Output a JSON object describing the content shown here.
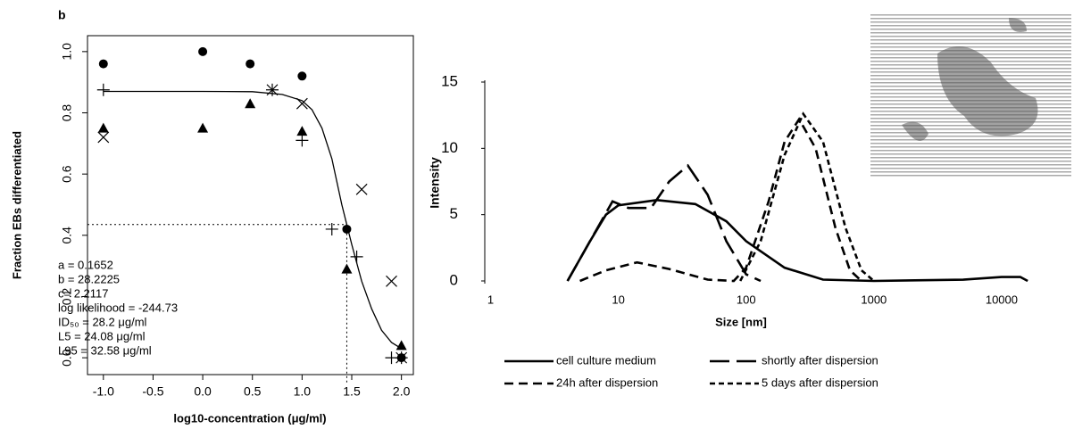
{
  "chart_data": [
    {
      "type": "scatter",
      "panel_label": "b",
      "xlabel": "log10-concentration (μg/ml)",
      "ylabel": "Fraction EBs differentiated",
      "xlim": [
        -1.16,
        2.12
      ],
      "ylim": [
        -0.055,
        1.052
      ],
      "xticks": [
        {
          "value": -1,
          "label": "-1.0"
        },
        {
          "value": -0.5,
          "label": "-0.5"
        },
        {
          "value": 0,
          "label": "0.0"
        },
        {
          "value": 0.5,
          "label": "0.5"
        },
        {
          "value": 1,
          "label": "1.0"
        },
        {
          "value": 1.5,
          "label": "1.5"
        },
        {
          "value": 2,
          "label": "2.0"
        }
      ],
      "yticks": [
        {
          "value": 0,
          "label": "0.0"
        },
        0.2,
        0.4,
        0.6,
        0.8,
        {
          "value": 1,
          "label": "1.0"
        }
      ],
      "annotations": [
        "a = 0.1652",
        "b = 28.2225",
        "c= 2.2117",
        "log likelihood = -244.73",
        "ID₅₀ = 28.2 μg/ml",
        "L5 = 24.08 μg/ml",
        "L95 = 32.58 μg/ml"
      ],
      "series": [
        {
          "marker": "circle",
          "color": "#000000",
          "x": [
            -1,
            0,
            0.477,
            1,
            1.45,
            2
          ],
          "values": [
            0.96,
            1.0,
            0.96,
            0.92,
            0.42,
            0.0
          ]
        },
        {
          "marker": "triangle",
          "color": "#000000",
          "x": [
            -1,
            0,
            0.477,
            1,
            1.45,
            2
          ],
          "values": [
            0.75,
            0.75,
            0.83,
            0.74,
            0.29,
            0.04
          ]
        },
        {
          "marker": "x",
          "color": "#000000",
          "x": [
            -1,
            0.7,
            1,
            1.6,
            1.9,
            2
          ],
          "values": [
            0.72,
            0.875,
            0.83,
            0.55,
            0.25,
            0.0
          ]
        },
        {
          "marker": "plus",
          "color": "#000000",
          "x": [
            -1,
            0.7,
            1,
            1.3,
            1.55,
            1.9,
            2
          ],
          "values": [
            0.875,
            0.875,
            0.71,
            0.42,
            0.33,
            0.0,
            0.0
          ]
        }
      ],
      "curve": {
        "color": "#000000",
        "x": [
          -1,
          0,
          0.5,
          0.8,
          1.0,
          1.1,
          1.2,
          1.3,
          1.4,
          1.45,
          1.5,
          1.6,
          1.7,
          1.8,
          1.9,
          2.0
        ],
        "values": [
          0.87,
          0.87,
          0.869,
          0.86,
          0.84,
          0.81,
          0.75,
          0.65,
          0.5,
          0.435,
          0.37,
          0.25,
          0.16,
          0.09,
          0.05,
          0.03
        ]
      }
    },
    {
      "type": "line",
      "xscale": "log",
      "xlabel": "Size [nm]",
      "ylabel": "Intensity",
      "xlim": [
        0.9,
        20000
      ],
      "ylim": [
        0,
        15
      ],
      "xticks": [
        1,
        10,
        100,
        1000,
        10000
      ],
      "yticks": [
        0,
        5,
        10,
        15
      ],
      "legend": "bottom",
      "series": [
        {
          "name": "cell culture medium",
          "color": "#000000",
          "dash": "solid",
          "x": [
            4,
            6,
            8,
            10,
            20,
            40,
            70,
            100,
            200,
            400,
            1000,
            5000,
            10000,
            14000,
            16000
          ],
          "values": [
            0,
            3,
            5,
            5.7,
            6.1,
            5.8,
            4.5,
            3,
            1,
            0.1,
            0,
            0.1,
            0.3,
            0.3,
            0
          ]
        },
        {
          "name": "shortly after dispersion",
          "color": "#000000",
          "dash": "long",
          "x": [
            4,
            6,
            9,
            12,
            18,
            25,
            35,
            50,
            70,
            100,
            130
          ],
          "values": [
            0,
            3,
            6,
            5.5,
            5.5,
            7.5,
            8.7,
            6.5,
            3,
            0.5,
            0
          ]
        },
        {
          "name": "24h after dispersion",
          "color": "#000000",
          "dash": "medium",
          "x": [
            5,
            8,
            14,
            25,
            50,
            80,
            100,
            150,
            200,
            260,
            350,
            500,
            650,
            800
          ],
          "values": [
            0,
            0.8,
            1.4,
            0.9,
            0.1,
            0,
            1,
            6,
            10.5,
            12.2,
            10,
            4,
            0.8,
            0
          ]
        },
        {
          "name": "5 days after dispersion",
          "color": "#000000",
          "dash": "short",
          "x": [
            90,
            130,
            200,
            280,
            400,
            600,
            800,
            1000
          ],
          "values": [
            0,
            3,
            9.5,
            12.6,
            10.5,
            4,
            0.8,
            0
          ]
        }
      ]
    }
  ]
}
